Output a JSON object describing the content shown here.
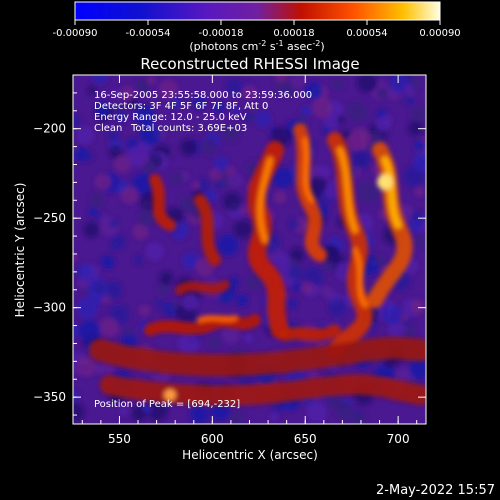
{
  "colorbar": {
    "tick_labels": [
      "-0.00090",
      "-0.00054",
      "-0.00018",
      "0.00018",
      "0.00054",
      "0.00090"
    ],
    "units_main": "(photons cm",
    "units_sup1": "-2",
    "units_mid1": " s",
    "units_sup2": "-1",
    "units_mid2": " asec",
    "units_sup3": "-2",
    "units_end": ")"
  },
  "title": "Reconstructed RHESSI Image",
  "annotations": {
    "time": "16-Sep-2005 23:55:58.000 to 23:59:36.000",
    "detectors": "Detectors: 3F 4F 5F 6F 7F 8F, Att 0",
    "energy": "Energy Range: 12.0 - 25.0 keV",
    "method": "Clean",
    "counts": "Total counts: 3.69E+03",
    "peak": "Position of Peak = [694,-232]"
  },
  "axes": {
    "xlabel": "Heliocentric X (arcsec)",
    "ylabel": "Heliocentric Y (arcsec)",
    "xlim": [
      525,
      715
    ],
    "ylim": [
      -365,
      -170
    ],
    "xticks": [
      550,
      600,
      650,
      700
    ],
    "yticks": [
      -200,
      -250,
      -300,
      -350
    ]
  },
  "footer_date": "2-May-2022 15:57"
}
